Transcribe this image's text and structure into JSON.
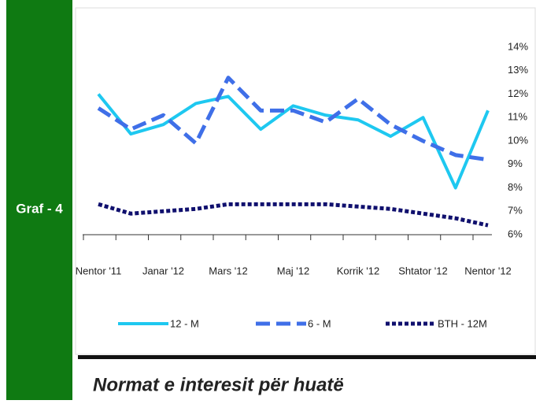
{
  "panel_label": "Graf - 4",
  "chart_data": {
    "type": "line",
    "title": "Normat e interesit për huatë",
    "categories": [
      "Nentor '11",
      null,
      "Janar '12",
      null,
      "Mars '12",
      null,
      "Maj '12",
      null,
      "Korrik '12",
      null,
      "Shtator '12",
      null,
      "Nentor '12"
    ],
    "series": [
      {
        "name": "12 - M",
        "color": "#1ec8f0",
        "dash": "solid",
        "values": [
          12.0,
          10.3,
          10.7,
          11.6,
          11.9,
          10.5,
          11.5,
          11.1,
          10.9,
          10.2,
          11.0,
          8.0,
          11.3
        ]
      },
      {
        "name": "6 - M",
        "color": "#3f6fe8",
        "dash": "dashed",
        "values": [
          11.4,
          10.5,
          11.1,
          9.9,
          12.7,
          11.3,
          11.3,
          10.8,
          11.8,
          10.7,
          10.0,
          9.4,
          9.2
        ]
      },
      {
        "name": "BTH - 12M",
        "color": "#10106e",
        "dash": "dotted",
        "values": [
          7.3,
          6.9,
          7.0,
          7.1,
          7.3,
          7.3,
          7.3,
          7.3,
          7.2,
          7.1,
          6.9,
          6.7,
          6.4
        ]
      }
    ],
    "ylim": [
      6,
      14
    ],
    "yticks": [
      {
        "value": 6,
        "label": "6%"
      },
      {
        "value": 7,
        "label": "7%"
      },
      {
        "value": 8,
        "label": "8%"
      },
      {
        "value": 9,
        "label": "9%"
      },
      {
        "value": 10,
        "label": "10%"
      },
      {
        "value": 11,
        "label": "11%"
      },
      {
        "value": 12,
        "label": "12%"
      },
      {
        "value": 13,
        "label": "13%"
      },
      {
        "value": 14,
        "label": "14%"
      }
    ],
    "y_axis_side": "right"
  }
}
